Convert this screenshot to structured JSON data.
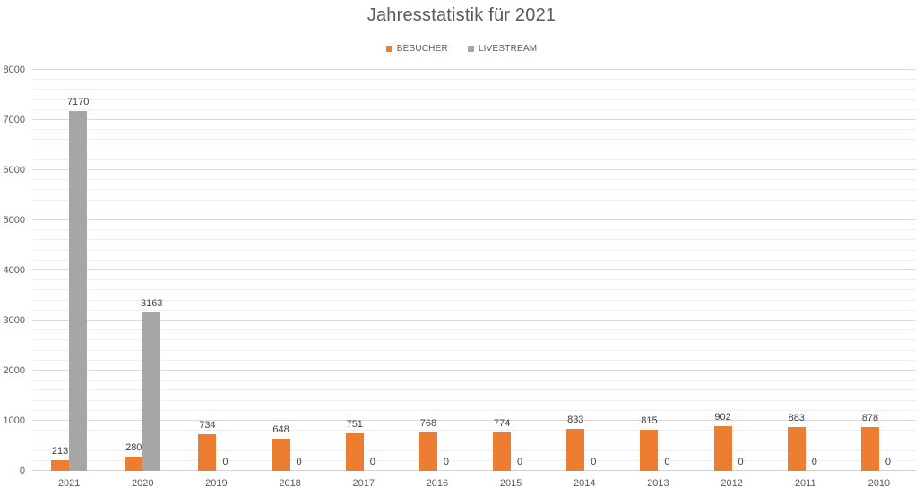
{
  "chart_data": {
    "type": "bar",
    "title": "Jahresstatistik für 2021",
    "categories": [
      "2021",
      "2020",
      "2019",
      "2018",
      "2017",
      "2016",
      "2015",
      "2014",
      "2013",
      "2012",
      "2011",
      "2010"
    ],
    "series": [
      {
        "name": "BESUCHER",
        "color": "#ED7D31",
        "values": [
          213,
          280,
          734,
          648,
          751,
          768,
          774,
          833,
          815,
          902,
          883,
          878
        ]
      },
      {
        "name": "LIVESTREAM",
        "color": "#A6A6A6",
        "values": [
          7170,
          3163,
          0,
          0,
          0,
          0,
          0,
          0,
          0,
          0,
          0,
          0
        ]
      }
    ],
    "ylim": [
      0,
      8000
    ],
    "y_major_step": 1000,
    "y_minor_step": 200,
    "y_tick_labels": [
      "0",
      "1000",
      "2000",
      "3000",
      "4000",
      "5000",
      "6000",
      "7000",
      "8000"
    ],
    "grid": true,
    "legend_position": "top-center",
    "value_labels": true
  },
  "colors": {
    "title_text": "#595959",
    "axis_text": "#595959",
    "value_label_text": "#404040",
    "major_gridline": "#DBDBDB",
    "minor_gridline": "#EFEFEF",
    "baseline": "#D2D2D2",
    "background": "#FFFFFF",
    "besucher": "#ED7D31",
    "livestream": "#A6A6A6"
  }
}
